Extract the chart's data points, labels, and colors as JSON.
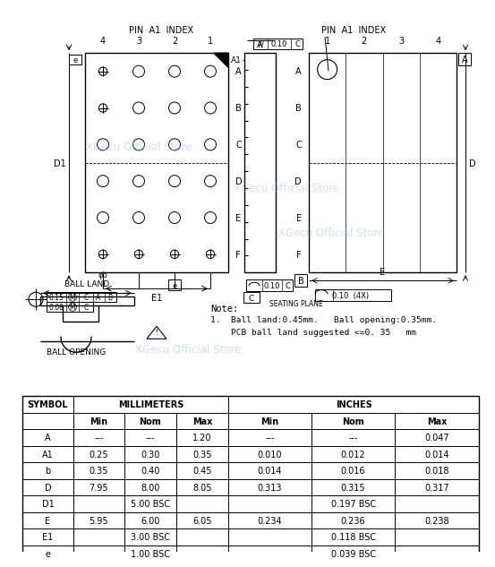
{
  "bg_color": "#ffffff",
  "watermark_color": "#aec6e8",
  "note_text": [
    "Note:",
    "1.  Ball land:0.45mm.   Ball opening:0.35mm.",
    "    PCB ball land suggested <=0. 35   mm"
  ],
  "table_rows": [
    [
      "A",
      "---",
      "---",
      "1.20",
      "---",
      "---",
      "0.047"
    ],
    [
      "A1",
      "0.25",
      "0.30",
      "0.35",
      "0.010",
      "0.012",
      "0.014"
    ],
    [
      "b",
      "0.35",
      "0.40",
      "0.45",
      "0.014",
      "0.016",
      "0.018"
    ],
    [
      "D",
      "7.95",
      "8.00",
      "8.05",
      "0.313",
      "0.315",
      "0.317"
    ],
    [
      "D1",
      "5.00 BSC",
      "",
      "",
      "0.197 BSC",
      "",
      ""
    ],
    [
      "E",
      "5.95",
      "6.00",
      "6.05",
      "0.234",
      "0.236",
      "0.238"
    ],
    [
      "E1",
      "3.00 BSC",
      "",
      "",
      "0.118 BSC",
      "",
      ""
    ],
    [
      "e",
      "1.00 BSC",
      "",
      "",
      "0.039 BSC",
      "",
      ""
    ]
  ]
}
